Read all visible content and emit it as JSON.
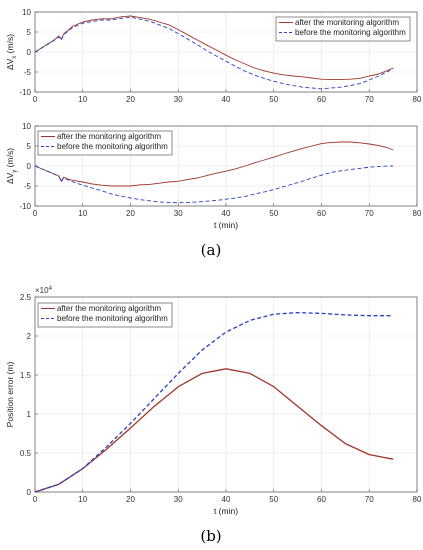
{
  "panel_labels": {
    "a": "(a)",
    "b": "(b)"
  },
  "colors": {
    "after": "#a0352a",
    "before": "#2a3fc2",
    "grid": "#e3e3e3",
    "axis": "#555555"
  },
  "chart_data": [
    {
      "id": "vx",
      "type": "line",
      "panel": "a",
      "ylabel": "ΔV",
      "ylabel_sub": "x",
      "ylabel_unit": " (m/s)",
      "xlabel": "",
      "xlim": [
        0,
        80
      ],
      "ylim": [
        -10,
        10
      ],
      "xticks": [
        0,
        10,
        20,
        30,
        40,
        50,
        60,
        70,
        80
      ],
      "yticks": [
        -10,
        -5,
        0,
        5,
        10
      ],
      "grid": true,
      "legend_position": "top-right",
      "series": [
        {
          "name": "after the monitoring algorithm",
          "style": "solid",
          "x": [
            0,
            2,
            4,
            5,
            5.5,
            6,
            7,
            8,
            10,
            12,
            14,
            16,
            18,
            20,
            22,
            24,
            26,
            28,
            30,
            32,
            34,
            36,
            38,
            40,
            42,
            44,
            46,
            48,
            50,
            52,
            54,
            56,
            58,
            60,
            62,
            64,
            66,
            68,
            70,
            72,
            74,
            75
          ],
          "y": [
            0,
            1.5,
            3,
            4,
            3.2,
            4.5,
            5.5,
            6.5,
            7.5,
            8,
            8.3,
            8.3,
            8.8,
            9,
            8.6,
            8.2,
            7.5,
            6.8,
            5.6,
            4.3,
            3,
            1.7,
            0.5,
            -0.8,
            -2,
            -3,
            -4,
            -4.7,
            -5.3,
            -5.7,
            -6,
            -6.2,
            -6.5,
            -6.8,
            -6.9,
            -6.9,
            -6.8,
            -6.6,
            -6,
            -5.5,
            -4.5,
            -4
          ]
        },
        {
          "name": "before the monitoring algorithm",
          "style": "dashed",
          "x": [
            0,
            2,
            4,
            5,
            5.5,
            6,
            7,
            8,
            10,
            12,
            14,
            16,
            18,
            20,
            22,
            24,
            26,
            28,
            30,
            32,
            34,
            36,
            38,
            40,
            42,
            44,
            46,
            48,
            50,
            52,
            54,
            56,
            58,
            60,
            62,
            64,
            66,
            68,
            70,
            72,
            74,
            75
          ],
          "y": [
            0,
            1.4,
            2.9,
            3.8,
            3,
            4.3,
            5.3,
            6.2,
            7.2,
            7.6,
            8,
            8,
            8.4,
            8.7,
            8.2,
            7.7,
            6.8,
            5.9,
            4.6,
            3.2,
            1.8,
            0.3,
            -1,
            -2.3,
            -3.6,
            -4.8,
            -5.8,
            -6.6,
            -7.3,
            -7.9,
            -8.4,
            -8.8,
            -9,
            -9.2,
            -9,
            -8.8,
            -8.4,
            -7.9,
            -7,
            -6,
            -4.8,
            -4
          ]
        }
      ]
    },
    {
      "id": "vy",
      "type": "line",
      "panel": "a",
      "ylabel": "ΔV",
      "ylabel_sub": "y",
      "ylabel_unit": " (m/s)",
      "xlabel": "t (min)",
      "xlim": [
        0,
        80
      ],
      "ylim": [
        -10,
        10
      ],
      "xticks": [
        0,
        10,
        20,
        30,
        40,
        50,
        60,
        70,
        80
      ],
      "yticks": [
        -10,
        -5,
        0,
        5,
        10
      ],
      "grid": true,
      "legend_position": "top-left",
      "series": [
        {
          "name": "after the monitoring algorithm",
          "style": "solid",
          "x": [
            0,
            2,
            4,
            5,
            5.5,
            6,
            7,
            8,
            10,
            12,
            14,
            16,
            18,
            20,
            22,
            24,
            26,
            28,
            30,
            32,
            34,
            36,
            38,
            40,
            42,
            44,
            46,
            48,
            50,
            52,
            54,
            56,
            58,
            60,
            62,
            64,
            66,
            68,
            70,
            72,
            74,
            75
          ],
          "y": [
            0,
            -1,
            -2,
            -2.5,
            -3.8,
            -2.8,
            -3.3,
            -3.6,
            -4,
            -4.5,
            -4.8,
            -5,
            -5,
            -5,
            -4.7,
            -4.6,
            -4.3,
            -4,
            -3.8,
            -3.4,
            -3,
            -2.4,
            -1.8,
            -1.3,
            -0.7,
            0,
            0.8,
            1.5,
            2.2,
            3,
            3.7,
            4.4,
            5,
            5.6,
            5.9,
            6,
            6,
            5.8,
            5.5,
            5.1,
            4.5,
            4
          ]
        },
        {
          "name": "before the monitoring algorithm",
          "style": "dashed",
          "x": [
            0,
            2,
            4,
            5,
            5.5,
            6,
            7,
            8,
            10,
            12,
            14,
            16,
            18,
            20,
            22,
            24,
            26,
            28,
            30,
            32,
            34,
            36,
            38,
            40,
            42,
            44,
            46,
            48,
            50,
            52,
            54,
            56,
            58,
            60,
            62,
            64,
            66,
            68,
            70,
            72,
            74,
            75
          ],
          "y": [
            0,
            -1,
            -2,
            -2.6,
            -4,
            -3,
            -3.5,
            -4,
            -4.8,
            -5.5,
            -6.2,
            -7,
            -7.5,
            -8,
            -8.4,
            -8.7,
            -9,
            -9.1,
            -9.2,
            -9.1,
            -9,
            -8.8,
            -8.6,
            -8.3,
            -8,
            -7.6,
            -7,
            -6.5,
            -5.9,
            -5.2,
            -4.5,
            -3.8,
            -3,
            -2.3,
            -1.6,
            -1.2,
            -0.9,
            -0.6,
            -0.3,
            -0.1,
            0,
            0
          ]
        }
      ]
    },
    {
      "id": "pos",
      "type": "line",
      "panel": "b",
      "ylabel": "Position error (m)",
      "xlabel": "t (min)",
      "exponent_label": "×10",
      "exponent_power": "4",
      "xlim": [
        0,
        80
      ],
      "ylim": [
        0,
        2.5
      ],
      "xticks": [
        0,
        10,
        20,
        30,
        40,
        50,
        60,
        70,
        80
      ],
      "yticks": [
        0,
        0.5,
        1,
        1.5,
        2,
        2.5
      ],
      "grid": true,
      "legend_position": "top-left",
      "series": [
        {
          "name": "after the monitoring algorithm",
          "style": "solid",
          "x": [
            0,
            5,
            10,
            15,
            20,
            25,
            30,
            35,
            40,
            45,
            50,
            55,
            60,
            65,
            70,
            75
          ],
          "y": [
            0,
            0.1,
            0.3,
            0.55,
            0.82,
            1.1,
            1.35,
            1.52,
            1.58,
            1.52,
            1.35,
            1.1,
            0.85,
            0.62,
            0.48,
            0.42
          ]
        },
        {
          "name": "before the monitoring algorithm",
          "style": "dashed",
          "x": [
            0,
            5,
            10,
            15,
            20,
            25,
            30,
            35,
            40,
            45,
            50,
            55,
            60,
            65,
            70,
            75
          ],
          "y": [
            0,
            0.1,
            0.3,
            0.58,
            0.88,
            1.2,
            1.52,
            1.82,
            2.05,
            2.2,
            2.28,
            2.3,
            2.29,
            2.27,
            2.26,
            2.26
          ]
        }
      ]
    }
  ]
}
